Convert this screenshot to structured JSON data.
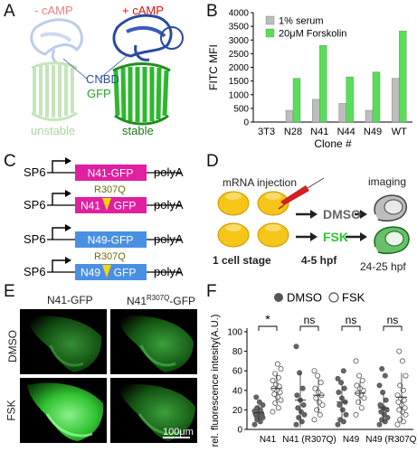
{
  "panels": {
    "A": {
      "letter": "A",
      "minus_label": "- cAMP",
      "plus_label": "+ cAMP",
      "cnbd_label": "CNBD",
      "gfp_label": "GFP",
      "unstable_label": "unstable",
      "stable_label": "stable",
      "colors": {
        "minus": "#f08080",
        "plus": "#e01010",
        "cnbd": "#3050a0",
        "gfp": "#2e9e2e",
        "unstable": "#a8d8a0",
        "stable": "#1a7a1a"
      }
    },
    "B": {
      "letter": "B",
      "chart_data": {
        "type": "bar",
        "title": "",
        "xlabel": "Clone #",
        "ylabel": "FITC MFI",
        "ylim": [
          0,
          4000
        ],
        "yticks": [
          0,
          500,
          1000,
          1500,
          2000,
          2500,
          3000,
          3500,
          4000
        ],
        "categories": [
          "3T3",
          "N28",
          "N41",
          "N44",
          "N49",
          "WT"
        ],
        "series": [
          {
            "name": "1% serum",
            "color": "#bdbdbd",
            "values": [
              0,
              430,
              830,
              680,
              430,
              1600
            ]
          },
          {
            "name": "20μM Forskolin",
            "color": "#55e055",
            "values": [
              0,
              1600,
              2800,
              1650,
              1830,
              3330
            ]
          }
        ],
        "legend": "top-left",
        "grid": false
      }
    },
    "C": {
      "letter": "C",
      "promoter": "SP6",
      "polyA": "polyA",
      "constructs": [
        {
          "name": "N41-GFP",
          "color": "#e020a0",
          "mutant": false
        },
        {
          "name_a": "N41",
          "name_b": "GFP",
          "mutation": "R307Q",
          "color": "#e020a0",
          "mutant": true
        },
        {
          "name": "N49-GFP",
          "color": "#4a90e2",
          "mutant": false
        },
        {
          "name_a": "N49",
          "name_b": "GFP",
          "mutation": "R307Q",
          "color": "#4a90e2",
          "mutant": true
        }
      ]
    },
    "D": {
      "letter": "D",
      "injection_label": "mRNA injection",
      "imaging_label": "imaging",
      "dmso_label": "DMSO",
      "fsk_label": "FSK",
      "stage1": "1 cell stage",
      "stage2": "4-5 hpf",
      "stage3": "24-25 hpf"
    },
    "E": {
      "letter": "E",
      "col1": "N41-GFP",
      "col2_a": "N41",
      "col2_sup": "R307Q",
      "col2_b": "-GFP",
      "row1": "DMSO",
      "row2": "FSK",
      "scalebar": "100μm"
    },
    "F": {
      "letter": "F",
      "chart_data": {
        "type": "scatter",
        "title": "",
        "ylabel": "rel. fluorescence intesity(A.U.)",
        "xlabel": "",
        "ylim": [
          0,
          100
        ],
        "yticks": [
          0,
          20,
          40,
          60,
          80,
          100
        ],
        "legend": "top",
        "series": [
          {
            "name": "DMSO",
            "marker": "filled"
          },
          {
            "name": "FSK",
            "marker": "open"
          }
        ],
        "groups": [
          {
            "label": "N41",
            "sig": "*",
            "dmso": {
              "mean": 17,
              "sd": 8,
              "points": [
                5,
                8,
                10,
                12,
                13,
                14,
                15,
                15,
                16,
                17,
                18,
                19,
                20,
                22,
                25,
                28,
                33
              ]
            },
            "fsk": {
              "mean": 42,
              "sd": 15,
              "points": [
                18,
                22,
                27,
                30,
                33,
                36,
                38,
                40,
                42,
                44,
                46,
                50,
                53,
                57,
                62,
                67
              ]
            }
          },
          {
            "label": "N41 (R307Q)",
            "sig": "ns",
            "dmso": {
              "mean": 30,
              "sd": 28,
              "points": [
                5,
                8,
                12,
                15,
                18,
                22,
                25,
                30,
                35,
                42,
                58,
                85
              ]
            },
            "fsk": {
              "mean": 35,
              "sd": 18,
              "points": [
                10,
                15,
                20,
                25,
                28,
                32,
                35,
                38,
                42,
                48,
                55,
                60
              ]
            }
          },
          {
            "label": "N49",
            "sig": "ns",
            "dmso": {
              "mean": 28,
              "sd": 18,
              "points": [
                5,
                8,
                10,
                15,
                20,
                25,
                28,
                32,
                38,
                42,
                48,
                52,
                60
              ]
            },
            "fsk": {
              "mean": 37,
              "sd": 12,
              "points": [
                15,
                22,
                28,
                32,
                35,
                37,
                40,
                42,
                45,
                50,
                55,
                70
              ]
            }
          },
          {
            "label": "N49 (R307Q)",
            "sig": "ns",
            "dmso": {
              "mean": 22,
              "sd": 15,
              "points": [
                5,
                8,
                10,
                12,
                15,
                18,
                20,
                22,
                25,
                30,
                38,
                45,
                55,
                62
              ]
            },
            "fsk": {
              "mean": 33,
              "sd": 25,
              "points": [
                5,
                8,
                10,
                15,
                18,
                20,
                22,
                25,
                28,
                30,
                32,
                35,
                40,
                45,
                55,
                70,
                80
              ]
            }
          }
        ]
      }
    }
  }
}
